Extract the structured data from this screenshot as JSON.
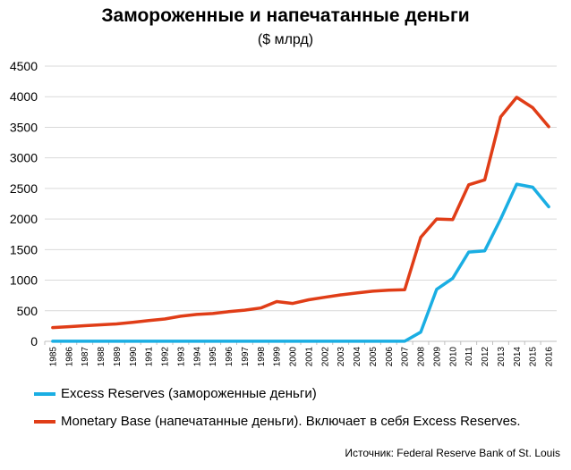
{
  "chart_data": {
    "type": "line",
    "title": "Замороженные и напечатанные деньги",
    "subtitle": "($ млрд)",
    "x": [
      "1985",
      "1986",
      "1987",
      "1988",
      "1989",
      "1990",
      "1991",
      "1992",
      "1993",
      "1994",
      "1995",
      "1996",
      "1997",
      "1998",
      "1999",
      "2000",
      "2001",
      "2002",
      "2003",
      "2004",
      "2005",
      "2006",
      "2007",
      "2008",
      "2009",
      "2010",
      "2011",
      "2012",
      "2013",
      "2014",
      "2015",
      "2016"
    ],
    "ylim": [
      0,
      4500
    ],
    "yticks": [
      0,
      500,
      1000,
      1500,
      2000,
      2500,
      3000,
      3500,
      4000,
      4500
    ],
    "grid": true,
    "legend_position": "bottom",
    "series": [
      {
        "name": "Excess Reserves (замороженные деньги)",
        "color": "#1aaee3",
        "values": [
          1,
          1,
          1,
          1,
          1,
          1,
          1,
          1,
          1,
          1,
          1,
          1,
          1,
          1,
          1,
          1,
          1,
          1,
          1,
          1,
          1,
          1,
          2,
          150,
          850,
          1030,
          1460,
          1480,
          2000,
          2570,
          2520,
          2200
        ]
      },
      {
        "name": "Monetary Base (напечатанные деньги). Включает в себя Excess Reserves.",
        "color": "#e03d17",
        "values": [
          225,
          240,
          255,
          270,
          285,
          310,
          340,
          365,
          410,
          440,
          455,
          485,
          510,
          545,
          650,
          620,
          680,
          720,
          760,
          790,
          820,
          835,
          845,
          1700,
          2000,
          1990,
          2560,
          2640,
          3670,
          3990,
          3820,
          3510
        ]
      }
    ]
  },
  "source_text": "Источник: Federal Reserve Bank of St. Louis"
}
